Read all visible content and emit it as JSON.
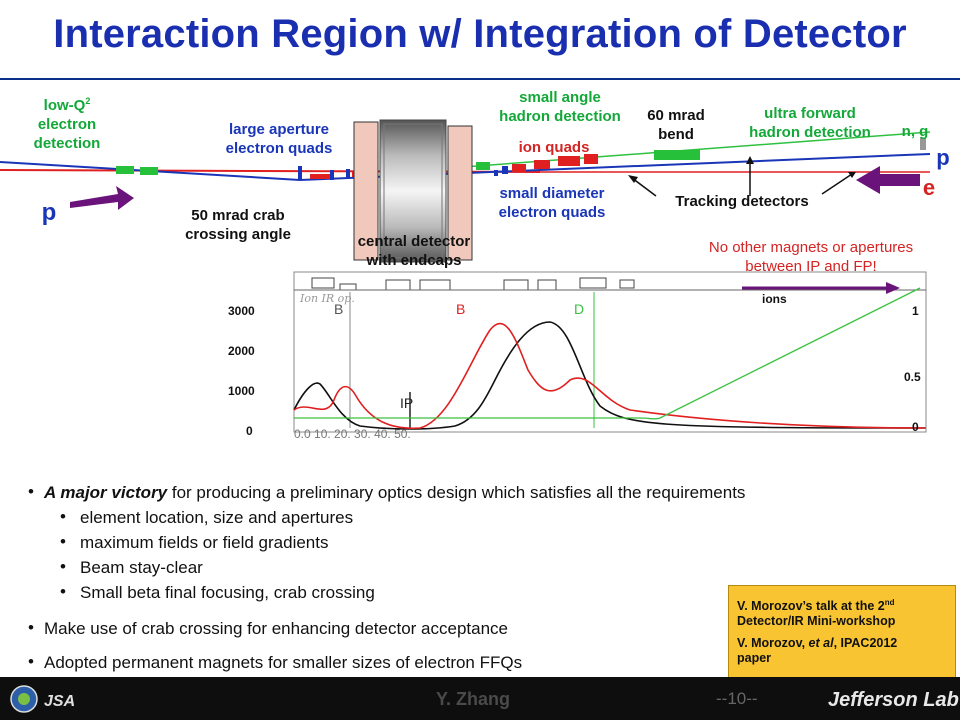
{
  "title": "Interaction Region w/ Integration of Detector",
  "labels": {
    "low_q2": "low-Q",
    "low_q2_sup": "2",
    "low_q2_line2": "electron",
    "low_q2_line3": "detection",
    "large_aperture": "large aperture",
    "large_aperture_2": "electron quads",
    "small_angle": "small angle",
    "small_angle_2": "hadron detection",
    "mrad60": "60 mrad",
    "mrad60_2": "bend",
    "ultra_forward": "ultra forward",
    "ultra_forward_2": "hadron detection",
    "n_g": "n, g",
    "p_right": "p",
    "e_right": "e",
    "p_left": "p",
    "ion_quads": "ion quads",
    "small_diameter": "small diameter",
    "small_diameter_2": "electron quads",
    "tracking": "Tracking detectors",
    "crab": "50 mrad crab",
    "crab_2": "crossing angle",
    "central": "central detector",
    "central_2": "with endcaps",
    "no_other": "No other magnets or apertures",
    "no_other_2": "between IP and FP!",
    "ions": "ions"
  },
  "plot": {
    "y_left_ticks": [
      "3000",
      "2000",
      "1000",
      "0"
    ],
    "y_right_ticks": [
      "1",
      "0.5",
      "0"
    ]
  },
  "bullets": {
    "main1_emph": "A major victory",
    "main1_rest": " for producing a preliminary optics design which satisfies all the requirements",
    "sub": [
      "element location, size and apertures",
      "maximum fields or field gradients",
      "Beam stay-clear",
      "Small beta final focusing, crab crossing"
    ],
    "main2": "Make use of crab crossing for enhancing detector acceptance",
    "main3": "Adopted permanent magnets for smaller sizes of electron FFQs"
  },
  "reference": {
    "line1a": "V. Morozov’s talk at the 2",
    "line1sup": "nd",
    "line1b": "Detector/IR Mini-workshop",
    "line2a": "V. Morozov, ",
    "line2em": "et al",
    "line2b": ", IPAC2012",
    "line2c": "paper"
  },
  "footer": {
    "name": "Y. Zhang",
    "page": "--10--",
    "lab": "Jefferson Lab"
  },
  "colors": {
    "title": "#1a2fb0",
    "green_label": "#13a838",
    "red_label": "#d42424",
    "ref_box": "#f9c431"
  }
}
